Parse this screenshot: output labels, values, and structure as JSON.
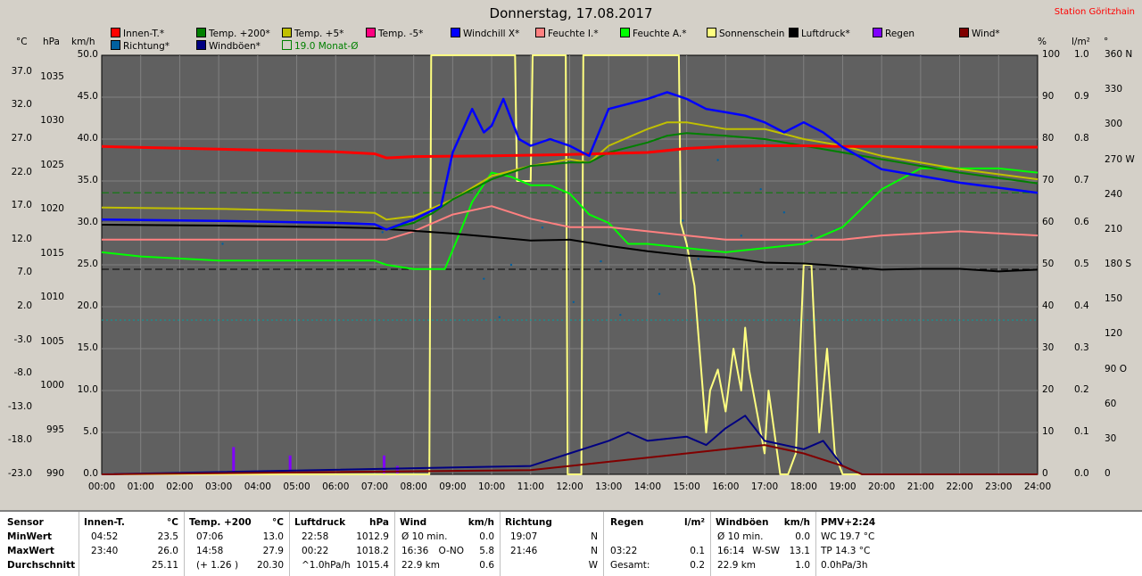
{
  "header": {
    "title": "Donnerstag, 17.08.2017",
    "station": "Station Göritzhain"
  },
  "units": {
    "celsius": "°C",
    "hpa": "hPa",
    "kmh": "km/h",
    "percent": "%",
    "lm2": "l/m²",
    "degree": "°"
  },
  "legend": [
    {
      "label": "Innen-T.*",
      "color": "#ff0000"
    },
    {
      "label": "Temp. +200*",
      "color": "#008000"
    },
    {
      "label": "Temp. +5*",
      "color": "#c0c000"
    },
    {
      "label": "Temp. -5*",
      "color": "#ff0080"
    },
    {
      "label": "Windchill X*",
      "color": "#0000ff"
    },
    {
      "label": "Feuchte I.*",
      "color": "#ff8080"
    },
    {
      "label": "Feuchte A.*",
      "color": "#00ff00"
    },
    {
      "label": "Sonnenschein",
      "color": "#ffff80"
    },
    {
      "label": "Luftdruck*",
      "color": "#000000"
    },
    {
      "label": "Regen",
      "color": "#8000ff"
    },
    {
      "label": "Wind*",
      "color": "#800000"
    },
    {
      "label": "Richtung*",
      "color": "#0060a0"
    },
    {
      "label": "Windböen*",
      "color": "#000080"
    },
    {
      "label": "19.0 Monat-Ø",
      "color": "#008000"
    }
  ],
  "chart_data": {
    "type": "line",
    "title": "Donnerstag, 17.08.2017",
    "x_ticks": [
      "00:00",
      "01:00",
      "02:00",
      "03:00",
      "04:00",
      "05:00",
      "06:00",
      "07:00",
      "08:00",
      "09:00",
      "10:00",
      "11:00",
      "12:00",
      "13:00",
      "14:00",
      "15:00",
      "16:00",
      "17:00",
      "18:00",
      "19:00",
      "20:00",
      "21:00",
      "22:00",
      "23:00",
      "24:00"
    ],
    "axes": {
      "celsius_ticks": [
        "37.0",
        "32.0",
        "27.0",
        "22.0",
        "17.0",
        "12.0",
        "7.0",
        "2.0",
        "-3.0",
        "-8.0",
        "-13.0",
        "-18.0",
        "-23.0"
      ],
      "hpa_ticks": [
        "1035",
        "1030",
        "1025",
        "1020",
        "1015",
        "1010",
        "1005",
        "1000",
        "995",
        "990"
      ],
      "kmh_ticks": [
        "50.0",
        "45.0",
        "40.0",
        "35.0",
        "30.0",
        "25.0",
        "20.0",
        "15.0",
        "10.0",
        "5.0",
        "0.0"
      ],
      "percent_ticks": [
        "100",
        "90",
        "80",
        "70",
        "60",
        "50",
        "40",
        "30",
        "20",
        "10",
        "0"
      ],
      "lm2_ticks": [
        "1.0",
        "0.9",
        "0.8",
        "0.7",
        "0.6",
        "0.5",
        "0.4",
        "0.3",
        "0.2",
        "0.1",
        "0.0"
      ],
      "degree_ticks": [
        "360 N",
        "330",
        "300",
        "270 W",
        "240",
        "210",
        "180 S",
        "150",
        "120",
        "90 O",
        "60",
        "30",
        "0"
      ],
      "celsius_range": [
        -23,
        39.5
      ],
      "hpa_range": [
        990,
        1037.5
      ],
      "kmh_range": [
        0,
        50
      ],
      "percent_range": [
        0,
        100
      ],
      "degree_range": [
        0,
        360
      ]
    },
    "grid": true,
    "series": [
      {
        "name": "Innen-T.*",
        "unit": "°C",
        "color": "#ff0000",
        "x": [
          0,
          3,
          6,
          7,
          7.3,
          8,
          10,
          12,
          14,
          15,
          16,
          17,
          18,
          19,
          20,
          22,
          24
        ],
        "values": [
          25.9,
          25.5,
          25.1,
          24.8,
          24.2,
          24.4,
          24.5,
          24.7,
          25.0,
          25.6,
          25.9,
          26.0,
          26.0,
          25.9,
          25.9,
          25.8,
          25.8
        ]
      },
      {
        "name": "Temp. +200*",
        "unit": "°C",
        "color": "#008000",
        "x": [
          7.3,
          8,
          8.5,
          9,
          10,
          11,
          12,
          12.5,
          13,
          14,
          14.5,
          15,
          16,
          17,
          18,
          19,
          20,
          22,
          24
        ],
        "values": [
          13.5,
          14.5,
          16,
          18,
          21,
          23,
          23.5,
          23.5,
          25,
          26.5,
          27.5,
          27.9,
          27.5,
          27,
          26,
          25,
          24,
          22,
          20.4
        ]
      },
      {
        "name": "Temp. +5*",
        "unit": "°C",
        "color": "#c0c000",
        "x": [
          0,
          3,
          6,
          7,
          7.3,
          8,
          9,
          10,
          11,
          12,
          12.5,
          13,
          14,
          14.5,
          15,
          16,
          17,
          18,
          19,
          20,
          22,
          24
        ],
        "values": [
          16.8,
          16.6,
          16.2,
          16.0,
          15,
          15.5,
          18,
          21.5,
          23,
          24,
          23.5,
          26,
          28.5,
          29.5,
          29.5,
          28.5,
          28.5,
          27,
          26,
          24.5,
          22.5,
          21
        ]
      },
      {
        "name": "Windchill X*",
        "unit": "°C",
        "color": "#0000ff",
        "x": [
          0,
          3,
          6,
          7,
          7.3,
          8,
          8.7,
          9,
          9.5,
          9.8,
          10,
          10.3,
          10.7,
          11,
          11.5,
          12,
          12.5,
          13,
          14,
          14.5,
          15,
          15.5,
          16,
          16.5,
          17,
          17.5,
          18,
          18.5,
          19,
          20,
          22,
          24
        ],
        "values": [
          15.0,
          14.8,
          14.5,
          14.3,
          13.5,
          15,
          17,
          25,
          31.5,
          28,
          29,
          33,
          27,
          26,
          27,
          26,
          24.5,
          31.5,
          33,
          34,
          33,
          31.5,
          31,
          30.5,
          29.5,
          28,
          29.5,
          28,
          25.8,
          22.5,
          20.5,
          19
        ]
      },
      {
        "name": "Feuchte I.*",
        "unit": "%",
        "color": "#ff8080",
        "x": [
          0,
          3,
          6,
          7,
          7.3,
          8,
          9,
          10,
          11,
          12,
          13,
          14,
          15,
          16,
          17,
          18,
          19,
          20,
          22,
          24
        ],
        "values": [
          56,
          56,
          56,
          56,
          56,
          58,
          62,
          64,
          61,
          59,
          59,
          58,
          57,
          56,
          56,
          56,
          56,
          57,
          58,
          57
        ]
      },
      {
        "name": "Feuchte A.*",
        "unit": "%",
        "color": "#00ff00",
        "x": [
          0,
          1,
          3,
          6,
          7,
          7.3,
          8,
          8.8,
          9.2,
          9.5,
          10,
          10.5,
          11,
          11.5,
          12,
          12.5,
          13,
          13.5,
          14,
          15,
          16,
          17,
          18,
          19,
          20,
          21,
          22,
          23,
          24
        ],
        "values": [
          53,
          52,
          51,
          51,
          51,
          50,
          49,
          49,
          58,
          65,
          72,
          71,
          69,
          69,
          67,
          62,
          60,
          55,
          55,
          54,
          53,
          54,
          55,
          59,
          68,
          73,
          73,
          73,
          72
        ]
      },
      {
        "name": "Luftdruck*",
        "unit": "hPa",
        "color": "#000000",
        "x": [
          0,
          3,
          6,
          7,
          7.3,
          8,
          9,
          10,
          11,
          12,
          13,
          14,
          15,
          16,
          17,
          18,
          19,
          20,
          21,
          22,
          23,
          24
        ],
        "values": [
          1018.3,
          1018.2,
          1018.0,
          1017.9,
          1017.8,
          1017.6,
          1017.3,
          1016.9,
          1016.5,
          1016.6,
          1015.9,
          1015.3,
          1014.8,
          1014.6,
          1014.0,
          1013.9,
          1013.6,
          1013.2,
          1013.3,
          1013.3,
          1013.0,
          1013.2
        ]
      },
      {
        "name": "Wind*",
        "unit": "km/h",
        "color": "#800000",
        "x": [
          0,
          11,
          12,
          13,
          14,
          15,
          16,
          17,
          18,
          19,
          19.5,
          24
        ],
        "values": [
          0,
          0.5,
          1,
          1.5,
          2,
          2.5,
          3,
          3.5,
          2.5,
          1,
          0,
          0
        ]
      },
      {
        "name": "Windböen*",
        "unit": "km/h",
        "color": "#000080",
        "x": [
          0,
          11,
          12,
          13,
          13.5,
          14,
          15,
          15.5,
          16,
          16.5,
          17,
          18,
          18.5,
          19,
          19.5,
          24
        ],
        "values": [
          0,
          1,
          2.5,
          4,
          5,
          4,
          4.5,
          3.5,
          5.5,
          7,
          4,
          3,
          4,
          1,
          0,
          0
        ]
      },
      {
        "name": "Sonnenschein",
        "unit": "%",
        "color": "#ffff80",
        "x": [
          0,
          8.4,
          8.45,
          10.6,
          10.65,
          11,
          11.05,
          11.9,
          11.95,
          12.3,
          12.35,
          12.4,
          12.45,
          14.8,
          14.85,
          15.0,
          15.2,
          15.5,
          15.6,
          15.8,
          16.0,
          16.2,
          16.4,
          16.5,
          16.6,
          17.0,
          17.1,
          17.4,
          17.6,
          17.8,
          18.0,
          18.2,
          18.4,
          18.6,
          18.8,
          19.0,
          19.2,
          24
        ],
        "values": [
          0,
          0,
          100,
          100,
          70,
          70,
          100,
          100,
          0,
          0,
          100,
          100,
          100,
          100,
          60,
          55,
          45,
          10,
          20,
          25,
          15,
          30,
          20,
          35,
          25,
          5,
          20,
          0,
          0,
          5,
          50,
          50,
          10,
          30,
          5,
          0,
          0,
          0
        ]
      }
    ],
    "rain": {
      "name": "Regen",
      "unit": "l/m²",
      "color": "#8000ff",
      "x": [
        3.37,
        4.82,
        7.23,
        7.57
      ],
      "values": [
        0.065,
        0.045,
        0.045,
        0.02
      ]
    },
    "direction": {
      "name": "Richtung*",
      "unit": "°",
      "color": "#0060a0",
      "x": [
        3.1,
        7.2,
        9.8,
        10.2,
        10.5,
        11.3,
        12.1,
        12.8,
        13.3,
        14.3,
        14.9,
        15.3,
        15.8,
        16.4,
        16.9,
        17.5,
        18.2,
        18.8
      ],
      "values": [
        198,
        208,
        168,
        135,
        180,
        212,
        148,
        183,
        137,
        155,
        218,
        185,
        270,
        205,
        245,
        225,
        205,
        210
      ]
    },
    "reference_lines": [
      {
        "name": "19.0 Monat-Ø",
        "unit": "°C",
        "value": 19.0,
        "color": "#008000",
        "style": "dashed"
      },
      {
        "name": "Luftdruck",
        "unit": "hPa",
        "value": 1013.25,
        "color": "#000000",
        "style": "dashed"
      },
      {
        "name": "0°C",
        "unit": "°C",
        "value": 0,
        "color": "#00a0a0",
        "style": "dotted"
      }
    ]
  },
  "summary": {
    "sensor": {
      "header": "Sensor",
      "rows": [
        "MinWert",
        "MaxWert",
        "Durchschnitt"
      ]
    },
    "innen": {
      "header": "Innen-T.",
      "unit": "°C",
      "rows": [
        [
          "04:52",
          "23.5"
        ],
        [
          "23:40",
          "26.0"
        ],
        [
          "",
          "25.11"
        ]
      ]
    },
    "temp": {
      "header": "Temp. +200",
      "unit": "°C",
      "rows": [
        [
          "07:06",
          "13.0"
        ],
        [
          "14:58",
          "27.9"
        ],
        [
          "(+ 1.26 )",
          "20.30"
        ]
      ]
    },
    "luftdruck": {
      "header": "Luftdruck",
      "unit": "hPa",
      "rows": [
        [
          "22:58",
          "1012.9"
        ],
        [
          "00:22",
          "1018.2"
        ],
        [
          "^1.0hPa/h",
          "1015.4"
        ]
      ]
    },
    "wind": {
      "header": "Wind",
      "unit": "km/h",
      "rows": [
        [
          "Ø 10 min.",
          "",
          "0.0"
        ],
        [
          "16:36",
          "O-NO",
          "5.8"
        ],
        [
          "22.9 km",
          "",
          "0.6"
        ]
      ]
    },
    "richtung": {
      "header": "Richtung",
      "rows": [
        [
          "19:07",
          "N"
        ],
        [
          "21:46",
          "N"
        ],
        [
          "",
          "W"
        ]
      ]
    },
    "regen": {
      "header": "Regen",
      "unit": "l/m²",
      "rows": [
        [
          "",
          ""
        ],
        [
          "03:22",
          "0.1"
        ],
        [
          "Gesamt:",
          "0.2"
        ]
      ]
    },
    "windboeen": {
      "header": "Windböen",
      "unit": "km/h",
      "rows": [
        [
          "Ø 10 min.",
          "",
          "0.0"
        ],
        [
          "16:14",
          "W-SW",
          "13.1"
        ],
        [
          "22.9 km",
          "",
          "1.0"
        ]
      ]
    },
    "pmv": {
      "header": "PMV+2:24",
      "rows": [
        "WC 19.7 °C",
        "TP 14.3 °C",
        "0.0hPa/3h"
      ]
    }
  }
}
